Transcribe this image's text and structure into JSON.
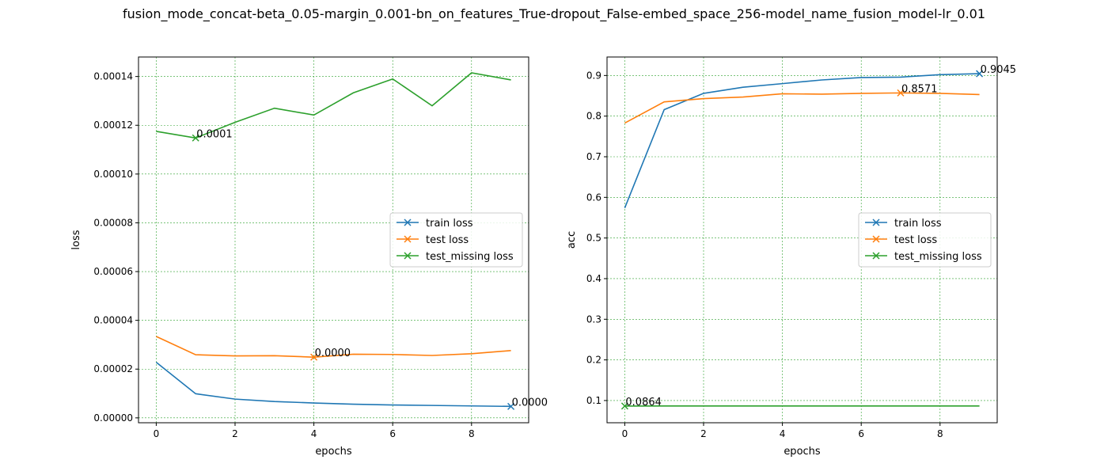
{
  "figure": {
    "suptitle": "fusion_mode_concat-beta_0.05-margin_0.001-bn_on_features_True-dropout_False-embed_space_256-model_name_fusion_model-lr_0.01"
  },
  "chart_data": [
    {
      "type": "line",
      "xlabel": "epochs",
      "ylabel": "loss",
      "xlim": [
        -0.45,
        9.45
      ],
      "ylim": [
        -2e-06,
        0.000148
      ],
      "xticks": [
        0,
        2,
        4,
        6,
        8
      ],
      "xtick_labels": [
        "0",
        "2",
        "4",
        "6",
        "8"
      ],
      "yticks": [
        0,
        2e-05,
        4e-05,
        6e-05,
        8e-05,
        0.0001,
        0.00012,
        0.00014
      ],
      "ytick_labels": [
        "0.00000",
        "0.00002",
        "0.00004",
        "0.00006",
        "0.00008",
        "0.00010",
        "0.00012",
        "0.00014"
      ],
      "grid": true,
      "legend_position": "center-right",
      "x": [
        0,
        1,
        2,
        3,
        4,
        5,
        6,
        7,
        8,
        9
      ],
      "series": [
        {
          "name": "train loss",
          "color": "#1f77b4",
          "values": [
            2.28e-05,
            9.9e-06,
            7.7e-06,
            6.7e-06,
            6.1e-06,
            5.6e-06,
            5.3e-06,
            5.1e-06,
            4.9e-06,
            4.7e-06
          ],
          "marker_index": 9,
          "marker_label": "0.0000"
        },
        {
          "name": "test loss",
          "color": "#ff7f0e",
          "values": [
            3.34e-05,
            2.59e-05,
            2.54e-05,
            2.55e-05,
            2.49e-05,
            2.61e-05,
            2.6e-05,
            2.56e-05,
            2.63e-05,
            2.76e-05
          ],
          "marker_index": 4,
          "marker_label": "0.0000"
        },
        {
          "name": "test_missing loss",
          "color": "#2ca02c",
          "values": [
            0.0001175,
            0.0001148,
            0.0001212,
            0.000127,
            0.0001242,
            0.0001333,
            0.000139,
            0.000128,
            0.0001415,
            0.0001386
          ],
          "marker_index": 1,
          "marker_label": "0.0001"
        }
      ]
    },
    {
      "type": "line",
      "xlabel": "epochs",
      "ylabel": "acc",
      "xlim": [
        -0.45,
        9.45
      ],
      "ylim": [
        0.0453,
        0.9455
      ],
      "xticks": [
        0,
        2,
        4,
        6,
        8
      ],
      "xtick_labels": [
        "0",
        "2",
        "4",
        "6",
        "8"
      ],
      "yticks": [
        0.1,
        0.2,
        0.3,
        0.4,
        0.5,
        0.6,
        0.7,
        0.8,
        0.9
      ],
      "ytick_labels": [
        "0.1",
        "0.2",
        "0.3",
        "0.4",
        "0.5",
        "0.6",
        "0.7",
        "0.8",
        "0.9"
      ],
      "grid": true,
      "legend_position": "center-right",
      "x": [
        0,
        1,
        2,
        3,
        4,
        5,
        6,
        7,
        8,
        9
      ],
      "series": [
        {
          "name": "train loss",
          "color": "#1f77b4",
          "values": [
            0.574,
            0.816,
            0.856,
            0.871,
            0.88,
            0.889,
            0.895,
            0.896,
            0.902,
            0.9045
          ],
          "marker_index": 9,
          "marker_label": "0.9045"
        },
        {
          "name": "test loss",
          "color": "#ff7f0e",
          "values": [
            0.783,
            0.835,
            0.843,
            0.847,
            0.855,
            0.854,
            0.856,
            0.8571,
            0.856,
            0.853
          ],
          "marker_index": 7,
          "marker_label": "0.8571"
        },
        {
          "name": "test_missing loss",
          "color": "#2ca02c",
          "values": [
            0.0864,
            0.0866,
            0.0866,
            0.0866,
            0.0866,
            0.0866,
            0.0866,
            0.0866,
            0.0866,
            0.0866
          ],
          "marker_index": 0,
          "marker_label": "0.0864"
        }
      ]
    }
  ]
}
